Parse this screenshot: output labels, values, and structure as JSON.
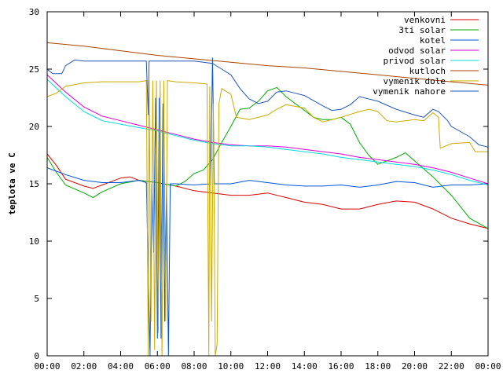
{
  "chart_data": {
    "type": "line",
    "title": "",
    "xlabel": "",
    "ylabel": "teplota ve C",
    "xlim": [
      0,
      24
    ],
    "ylim": [
      0,
      30
    ],
    "x_ticks": [
      0,
      2,
      4,
      6,
      8,
      10,
      12,
      14,
      16,
      18,
      20,
      22,
      24
    ],
    "x_tick_labels": [
      "00:00",
      "02:00",
      "04:00",
      "06:00",
      "08:00",
      "10:00",
      "12:00",
      "14:00",
      "16:00",
      "18:00",
      "20:00",
      "22:00",
      "00:00"
    ],
    "y_ticks": [
      0,
      5,
      10,
      15,
      20,
      25,
      30
    ],
    "y_tick_labels": [
      "0",
      "5",
      "10",
      "15",
      "20",
      "25",
      "30"
    ],
    "grid": false,
    "legend_position": "top-right",
    "series": [
      {
        "name": "venkovni",
        "color": "#dd0000",
        "points": [
          [
            0,
            17.6
          ],
          [
            0.5,
            16.6
          ],
          [
            1,
            15.4
          ],
          [
            2,
            14.8
          ],
          [
            2.5,
            14.6
          ],
          [
            3,
            14.9
          ],
          [
            4,
            15.5
          ],
          [
            4.5,
            15.6
          ],
          [
            5,
            15.3
          ],
          [
            6,
            15.1
          ],
          [
            7,
            14.8
          ],
          [
            8,
            14.4
          ],
          [
            9,
            14.2
          ],
          [
            10,
            14.0
          ],
          [
            11,
            14.0
          ],
          [
            12,
            14.2
          ],
          [
            13,
            13.8
          ],
          [
            14,
            13.4
          ],
          [
            15,
            13.2
          ],
          [
            16,
            12.8
          ],
          [
            17,
            12.8
          ],
          [
            18,
            13.2
          ],
          [
            19,
            13.5
          ],
          [
            20,
            13.4
          ],
          [
            21,
            12.8
          ],
          [
            22,
            12.0
          ],
          [
            23,
            11.5
          ],
          [
            24,
            11.1
          ]
        ]
      },
      {
        "name": "3ti solar",
        "color": "#00aa00",
        "points": [
          [
            0,
            17.3
          ],
          [
            0.5,
            16.0
          ],
          [
            1,
            14.9
          ],
          [
            2,
            14.2
          ],
          [
            2.5,
            13.8
          ],
          [
            3,
            14.3
          ],
          [
            4,
            15.0
          ],
          [
            5,
            15.3
          ],
          [
            6,
            15.1
          ],
          [
            7,
            14.8
          ],
          [
            7.5,
            15.2
          ],
          [
            8,
            15.9
          ],
          [
            8.5,
            16.2
          ],
          [
            9,
            17.1
          ],
          [
            9.5,
            18.6
          ],
          [
            10,
            20.0
          ],
          [
            10.5,
            21.5
          ],
          [
            11,
            21.6
          ],
          [
            11.5,
            22.2
          ],
          [
            12,
            23.1
          ],
          [
            12.5,
            23.4
          ],
          [
            13,
            22.6
          ],
          [
            14,
            21.4
          ],
          [
            14.5,
            20.8
          ],
          [
            15,
            20.6
          ],
          [
            15.5,
            20.6
          ],
          [
            16,
            20.8
          ],
          [
            16.5,
            20.2
          ],
          [
            17,
            18.6
          ],
          [
            17.5,
            17.5
          ],
          [
            18,
            16.7
          ],
          [
            19,
            17.3
          ],
          [
            19.5,
            17.7
          ],
          [
            20,
            17.0
          ],
          [
            20.5,
            16.3
          ],
          [
            21,
            15.6
          ],
          [
            22,
            14.0
          ],
          [
            23,
            12.0
          ],
          [
            24,
            11.1
          ]
        ]
      },
      {
        "name": "kotel",
        "color": "#0055dd",
        "points": [
          [
            0,
            16.4
          ],
          [
            1,
            15.8
          ],
          [
            2,
            15.3
          ],
          [
            3,
            15.1
          ],
          [
            4,
            15.1
          ],
          [
            5,
            15.3
          ],
          [
            5.4,
            15.1
          ],
          [
            5.6,
            0
          ],
          [
            5.7,
            15
          ],
          [
            5.8,
            9
          ],
          [
            5.9,
            22.5
          ],
          [
            6.0,
            1.5
          ],
          [
            6.1,
            22.5
          ],
          [
            6.2,
            1.5
          ],
          [
            6.3,
            22
          ],
          [
            6.4,
            3
          ],
          [
            6.5,
            15
          ],
          [
            6.6,
            0
          ],
          [
            6.7,
            15
          ],
          [
            7,
            15.0
          ],
          [
            8,
            14.9
          ],
          [
            8.9,
            15.0
          ],
          [
            9,
            26.0
          ],
          [
            9.1,
            15.0
          ],
          [
            10,
            15.0
          ],
          [
            11,
            15.3
          ],
          [
            12,
            15.1
          ],
          [
            13,
            14.9
          ],
          [
            14,
            14.8
          ],
          [
            15,
            14.8
          ],
          [
            16,
            14.9
          ],
          [
            17,
            14.7
          ],
          [
            18,
            14.9
          ],
          [
            19,
            15.2
          ],
          [
            20,
            15.1
          ],
          [
            21,
            14.7
          ],
          [
            22,
            14.9
          ],
          [
            23,
            14.9
          ],
          [
            24,
            15.0
          ]
        ]
      },
      {
        "name": "odvod solar",
        "color": "#dd00dd",
        "points": [
          [
            0,
            24.5
          ],
          [
            1,
            23.0
          ],
          [
            2,
            21.7
          ],
          [
            3,
            20.9
          ],
          [
            4,
            20.5
          ],
          [
            5,
            20.1
          ],
          [
            6,
            19.7
          ],
          [
            7,
            19.3
          ],
          [
            8,
            18.9
          ],
          [
            9,
            18.6
          ],
          [
            10,
            18.4
          ],
          [
            11,
            18.3
          ],
          [
            12,
            18.3
          ],
          [
            13,
            18.2
          ],
          [
            14,
            18.0
          ],
          [
            15,
            17.8
          ],
          [
            16,
            17.6
          ],
          [
            17,
            17.3
          ],
          [
            18,
            17.1
          ],
          [
            19,
            16.9
          ],
          [
            20,
            16.7
          ],
          [
            21,
            16.4
          ],
          [
            22,
            16.0
          ],
          [
            23,
            15.5
          ],
          [
            24,
            15.0
          ]
        ]
      },
      {
        "name": "privod solar",
        "color": "#00dddd",
        "points": [
          [
            0,
            24.1
          ],
          [
            1,
            22.6
          ],
          [
            2,
            21.3
          ],
          [
            3,
            20.5
          ],
          [
            4,
            20.2
          ],
          [
            5,
            19.9
          ],
          [
            6,
            19.6
          ],
          [
            7,
            19.2
          ],
          [
            8,
            18.8
          ],
          [
            9,
            18.5
          ],
          [
            10,
            18.3
          ],
          [
            11,
            18.3
          ],
          [
            12,
            18.2
          ],
          [
            13,
            18.0
          ],
          [
            14,
            17.8
          ],
          [
            15,
            17.6
          ],
          [
            16,
            17.3
          ],
          [
            17,
            17.1
          ],
          [
            18,
            16.9
          ],
          [
            19,
            16.7
          ],
          [
            20,
            16.5
          ],
          [
            21,
            16.2
          ],
          [
            22,
            15.8
          ],
          [
            23,
            15.3
          ],
          [
            24,
            14.9
          ]
        ]
      },
      {
        "name": "kutloch",
        "color": "#aa4400",
        "points": [
          [
            0,
            27.3
          ],
          [
            2,
            27.0
          ],
          [
            4,
            26.6
          ],
          [
            6,
            26.2
          ],
          [
            8,
            25.9
          ],
          [
            10,
            25.6
          ],
          [
            12,
            25.3
          ],
          [
            14,
            25.1
          ],
          [
            16,
            24.8
          ],
          [
            18,
            24.5
          ],
          [
            20,
            24.2
          ],
          [
            22,
            23.9
          ],
          [
            24,
            23.6
          ]
        ]
      },
      {
        "name": "vymenik dole",
        "color": "#ccaa00",
        "points": [
          [
            0,
            22.6
          ],
          [
            0.5,
            22.9
          ],
          [
            1,
            23.5
          ],
          [
            2,
            23.8
          ],
          [
            3,
            23.9
          ],
          [
            4,
            23.9
          ],
          [
            5,
            23.9
          ],
          [
            5.4,
            24.0
          ],
          [
            5.5,
            0
          ],
          [
            5.55,
            24
          ],
          [
            5.65,
            3
          ],
          [
            5.75,
            24
          ],
          [
            5.85,
            0.5
          ],
          [
            5.95,
            24
          ],
          [
            6.05,
            2
          ],
          [
            6.15,
            24
          ],
          [
            6.25,
            0
          ],
          [
            6.35,
            24
          ],
          [
            6.45,
            3
          ],
          [
            6.55,
            24
          ],
          [
            7,
            23.9
          ],
          [
            8,
            23.8
          ],
          [
            8.7,
            23.7
          ],
          [
            8.8,
            0
          ],
          [
            8.85,
            23.5
          ],
          [
            8.95,
            3
          ],
          [
            9.05,
            22
          ],
          [
            9.15,
            0
          ],
          [
            9.25,
            1
          ],
          [
            9.35,
            22
          ],
          [
            9.5,
            23.3
          ],
          [
            10,
            22.8
          ],
          [
            10.3,
            20.8
          ],
          [
            11,
            20.6
          ],
          [
            12,
            21.0
          ],
          [
            12.5,
            21.5
          ],
          [
            13,
            21.9
          ],
          [
            14,
            21.6
          ],
          [
            14.5,
            20.8
          ],
          [
            15,
            20.4
          ],
          [
            16,
            20.8
          ],
          [
            17,
            21.3
          ],
          [
            17.5,
            21.5
          ],
          [
            18,
            21.3
          ],
          [
            18.5,
            20.5
          ],
          [
            19,
            20.4
          ],
          [
            20,
            20.6
          ],
          [
            20.5,
            20.5
          ],
          [
            21,
            21.2
          ],
          [
            21.3,
            20.8
          ],
          [
            21.4,
            18.1
          ],
          [
            22,
            18.5
          ],
          [
            23,
            18.6
          ],
          [
            23.3,
            17.8
          ],
          [
            24,
            17.8
          ]
        ]
      },
      {
        "name": "vymenik nahore",
        "color": "#2255bb",
        "points": [
          [
            0,
            25.0
          ],
          [
            0.3,
            24.6
          ],
          [
            0.8,
            24.6
          ],
          [
            1,
            25.3
          ],
          [
            1.5,
            25.8
          ],
          [
            2,
            25.7
          ],
          [
            3,
            25.7
          ],
          [
            4,
            25.7
          ],
          [
            5,
            25.7
          ],
          [
            5.4,
            25.7
          ],
          [
            5.5,
            21
          ],
          [
            5.55,
            25.7
          ],
          [
            6,
            25.7
          ],
          [
            7,
            25.7
          ],
          [
            8,
            25.7
          ],
          [
            8.5,
            25.6
          ],
          [
            9,
            25.5
          ],
          [
            9.5,
            25.0
          ],
          [
            10,
            24.5
          ],
          [
            10.5,
            23.3
          ],
          [
            11,
            22.4
          ],
          [
            11.5,
            22.0
          ],
          [
            12,
            22.2
          ],
          [
            12.5,
            23.0
          ],
          [
            13,
            23.1
          ],
          [
            14,
            22.7
          ],
          [
            15,
            21.8
          ],
          [
            15.5,
            21.4
          ],
          [
            16,
            21.5
          ],
          [
            16.5,
            21.9
          ],
          [
            17,
            22.6
          ],
          [
            18,
            22.2
          ],
          [
            19,
            21.5
          ],
          [
            20,
            21.0
          ],
          [
            20.5,
            20.8
          ],
          [
            21,
            21.5
          ],
          [
            21.3,
            21.3
          ],
          [
            21.8,
            20.5
          ],
          [
            22,
            20.0
          ],
          [
            23,
            19.1
          ],
          [
            23.5,
            18.4
          ],
          [
            24,
            18.2
          ]
        ]
      }
    ]
  }
}
